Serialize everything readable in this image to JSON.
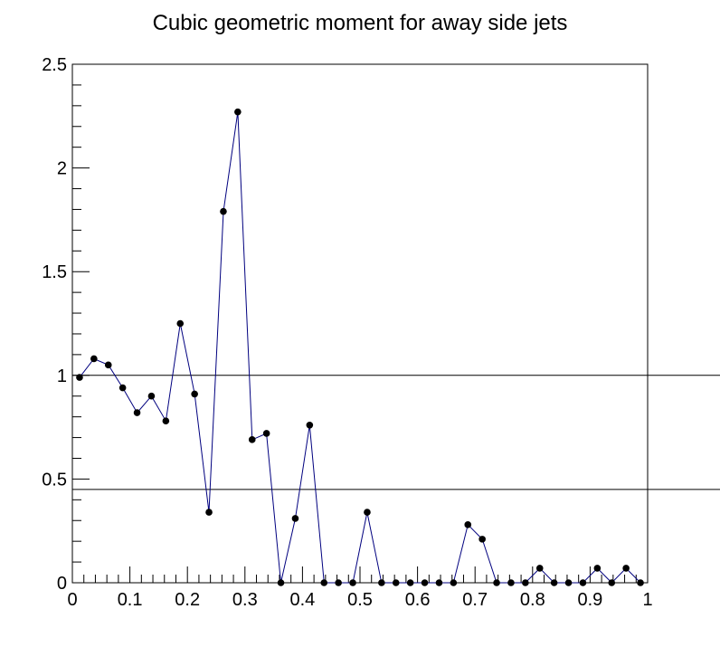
{
  "chart_data": {
    "type": "line",
    "title": "Cubic geometric moment for away side jets",
    "xlabel": "",
    "ylabel": "",
    "xlim": [
      0,
      1
    ],
    "ylim": [
      0,
      2.5
    ],
    "grid": false,
    "legend": "none",
    "x_ticks": [
      "0",
      "0.1",
      "0.2",
      "0.3",
      "0.4",
      "0.5",
      "0.6",
      "0.7",
      "0.8",
      "0.9",
      "1"
    ],
    "y_ticks": [
      "0",
      "0.5",
      "1",
      "1.5",
      "2",
      "2.5"
    ],
    "reference_lines": [
      1.0,
      0.45
    ],
    "colors": {
      "line": "#00007f",
      "marker": "#000000",
      "axis": "#000000"
    },
    "series": [
      {
        "x": [
          0.0125,
          0.0375,
          0.0625,
          0.0875,
          0.1125,
          0.1375,
          0.1625,
          0.1875,
          0.2125,
          0.2375,
          0.2625,
          0.2875,
          0.3125,
          0.3375,
          0.3625,
          0.3875,
          0.4125,
          0.4375,
          0.4625,
          0.4875,
          0.5125,
          0.5375,
          0.5625,
          0.5875,
          0.6125,
          0.6375,
          0.6625,
          0.6875,
          0.7125,
          0.7375,
          0.7625,
          0.7875,
          0.8125,
          0.8375,
          0.8625,
          0.8875,
          0.9125,
          0.9375,
          0.9625,
          0.9875
        ],
        "values": [
          0.99,
          1.08,
          1.05,
          0.94,
          0.82,
          0.9,
          0.78,
          1.25,
          0.91,
          0.34,
          1.79,
          2.27,
          0.69,
          0.72,
          0.0,
          0.31,
          0.76,
          0.0,
          0.0,
          0.0,
          0.34,
          0.0,
          0.0,
          0.0,
          0.0,
          0.0,
          0.0,
          0.28,
          0.21,
          0.0,
          0.0,
          0.0,
          0.07,
          0.0,
          0.0,
          0.0,
          0.07,
          0.0,
          0.07,
          0.0
        ]
      }
    ]
  }
}
